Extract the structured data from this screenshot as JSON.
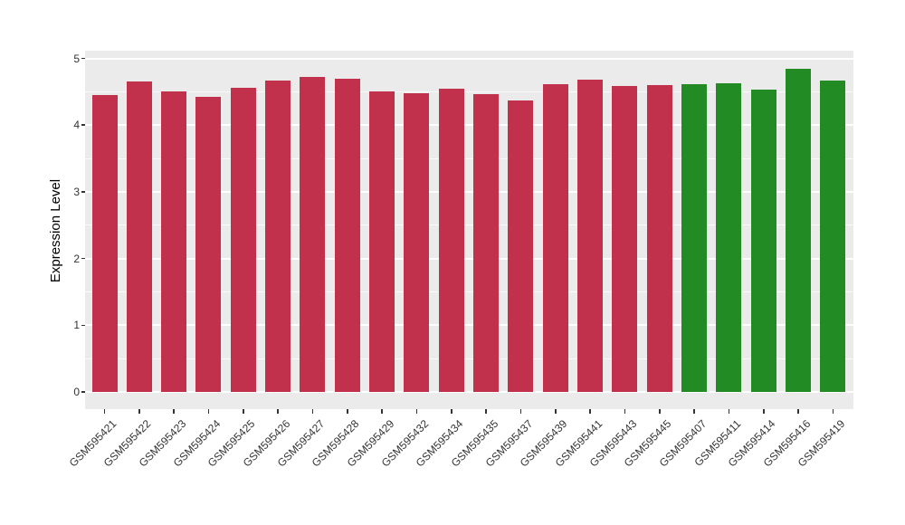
{
  "chart_data": {
    "type": "bar",
    "title": "",
    "xlabel": "",
    "ylabel": "Expression Level",
    "ylim": [
      0,
      5.12
    ],
    "yticks": [
      0,
      1,
      2,
      3,
      4,
      5
    ],
    "y_minor_ticks": [
      0.5,
      1.5,
      2.5,
      3.5,
      4.5
    ],
    "grid": "major and minor white horizontal gridlines on gray panel",
    "legend_position": "none",
    "panel_background": "#EBEBEB",
    "gridline_color": "#FFFFFF",
    "axis_text_color": "#333333",
    "categories": [
      "GSM595421",
      "GSM595422",
      "GSM595423",
      "GSM595424",
      "GSM595425",
      "GSM595426",
      "GSM595427",
      "GSM595428",
      "GSM595429",
      "GSM595432",
      "GSM595434",
      "GSM595435",
      "GSM595437",
      "GSM595439",
      "GSM595441",
      "GSM595443",
      "GSM595445",
      "GSM595407",
      "GSM595411",
      "GSM595414",
      "GSM595416",
      "GSM595419"
    ],
    "values": [
      4.45,
      4.66,
      4.5,
      4.42,
      4.56,
      4.67,
      4.72,
      4.69,
      4.5,
      4.48,
      4.55,
      4.46,
      4.37,
      4.61,
      4.68,
      4.58,
      4.6,
      4.61,
      4.63,
      4.53,
      4.85,
      4.67
    ],
    "groups": [
      "red",
      "red",
      "red",
      "red",
      "red",
      "red",
      "red",
      "red",
      "red",
      "red",
      "red",
      "red",
      "red",
      "red",
      "red",
      "red",
      "red",
      "green",
      "green",
      "green",
      "green",
      "green"
    ],
    "group_colors": {
      "red": "#C2314C",
      "green": "#238B23"
    }
  }
}
